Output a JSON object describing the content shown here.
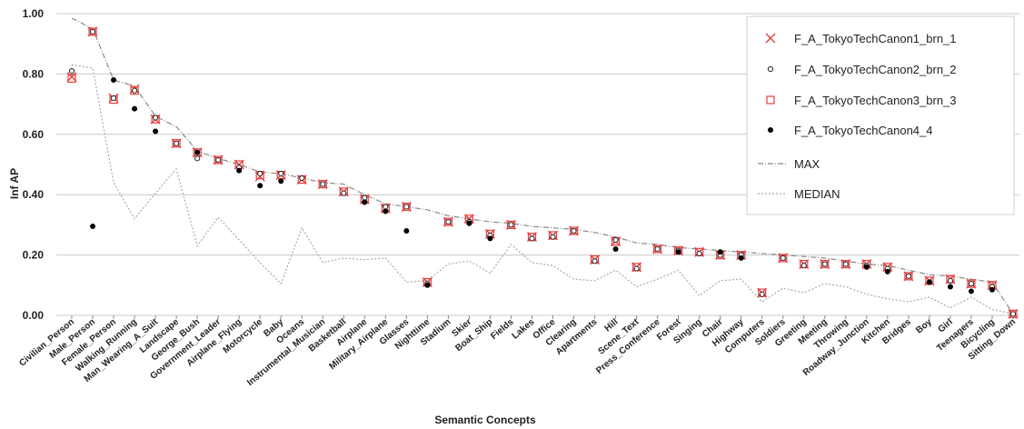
{
  "chart_data": {
    "type": "scatter",
    "xlabel": "Semantic Concepts",
    "ylabel": "Inf AP",
    "ylim": [
      0,
      1
    ],
    "yticks": [
      "0.00",
      "0.20",
      "0.40",
      "0.60",
      "0.80",
      "1.00"
    ],
    "grid": "horizontal",
    "legend_position": "top-right",
    "categories": [
      "Civilian_Person",
      "Male_Person",
      "Female_Person",
      "Walking_Running",
      "Man_Wearing_A_Suit",
      "Landscape",
      "George_Bush",
      "Government_Leader",
      "Airplane_Flying",
      "Motorcycle",
      "Baby",
      "Oceans",
      "Instrumental_Musician",
      "Basketball",
      "Airplane",
      "Military_Airplane",
      "Glasses",
      "Nighttime",
      "Stadium",
      "Skier",
      "Boat_Ship",
      "Fields",
      "Lakes",
      "Office",
      "Clearing",
      "Apartments",
      "Hill",
      "Scene_Text",
      "Press_Conference",
      "Forest",
      "Singing",
      "Chair",
      "Highway",
      "Computers",
      "Soldiers",
      "Greeting",
      "Meeting",
      "Throwing",
      "Roadway_Junction",
      "Kitchen",
      "Bridges",
      "Boy",
      "Girl",
      "Teenagers",
      "Bicycling",
      "Sitting_Down"
    ],
    "series": [
      {
        "name": "F_A_TokyoTechCanon1_brn_1",
        "marker": "x",
        "color": "#e84040",
        "values": [
          0.79,
          0.94,
          0.72,
          0.75,
          0.65,
          0.57,
          0.54,
          0.515,
          0.5,
          0.46,
          0.465,
          0.45,
          0.435,
          0.41,
          0.385,
          0.355,
          0.36,
          0.11,
          0.31,
          0.32,
          0.27,
          0.3,
          0.26,
          0.265,
          0.28,
          0.185,
          0.245,
          0.16,
          0.22,
          0.215,
          0.21,
          0.2,
          0.2,
          0.075,
          0.19,
          0.17,
          0.17,
          0.17,
          0.17,
          0.16,
          0.13,
          0.115,
          0.12,
          0.105,
          0.1,
          0.005
        ]
      },
      {
        "name": "F_A_TokyoTechCanon2_brn_2",
        "marker": "open-circle",
        "color": "#222222",
        "values": [
          0.81,
          0.94,
          0.72,
          0.745,
          0.655,
          0.57,
          0.52,
          0.515,
          0.49,
          0.47,
          0.47,
          0.455,
          0.435,
          0.405,
          0.39,
          0.36,
          0.36,
          0.105,
          0.31,
          0.31,
          0.265,
          0.3,
          0.255,
          0.26,
          0.28,
          0.18,
          0.25,
          0.155,
          0.22,
          0.215,
          0.205,
          0.2,
          0.2,
          0.07,
          0.19,
          0.165,
          0.17,
          0.17,
          0.165,
          0.155,
          0.13,
          0.11,
          0.115,
          0.105,
          0.095,
          0.005
        ]
      },
      {
        "name": "F_A_TokyoTechCanon3_brn_3",
        "marker": "open-square",
        "color": "#e84040",
        "values": [
          0.785,
          0.94,
          0.715,
          0.745,
          0.65,
          0.57,
          0.54,
          0.515,
          0.5,
          0.465,
          0.465,
          0.45,
          0.435,
          0.41,
          0.385,
          0.355,
          0.36,
          0.11,
          0.31,
          0.32,
          0.27,
          0.3,
          0.26,
          0.265,
          0.28,
          0.185,
          0.245,
          0.16,
          0.22,
          0.215,
          0.21,
          0.2,
          0.2,
          0.075,
          0.19,
          0.17,
          0.17,
          0.17,
          0.17,
          0.16,
          0.13,
          0.115,
          0.12,
          0.105,
          0.1,
          0.005
        ]
      },
      {
        "name": "F_A_TokyoTechCanon4_4",
        "marker": "filled-circle",
        "color": "#000000",
        "values": [
          null,
          0.295,
          0.78,
          0.685,
          0.61,
          null,
          0.54,
          null,
          0.48,
          0.43,
          0.445,
          null,
          null,
          null,
          0.375,
          0.345,
          0.28,
          0.1,
          null,
          0.305,
          0.255,
          null,
          null,
          null,
          null,
          null,
          0.22,
          null,
          null,
          0.21,
          null,
          0.21,
          0.19,
          null,
          null,
          null,
          null,
          null,
          0.16,
          0.145,
          null,
          0.11,
          0.095,
          0.08,
          0.085,
          null
        ]
      },
      {
        "name": "MAX",
        "marker": "dash-dot-line",
        "color": "#8a8a8a",
        "values": [
          0.985,
          0.95,
          0.78,
          0.76,
          0.66,
          0.625,
          0.545,
          0.52,
          0.5,
          0.475,
          0.47,
          0.455,
          0.44,
          0.435,
          0.4,
          0.37,
          0.36,
          0.35,
          0.33,
          0.32,
          0.31,
          0.305,
          0.295,
          0.29,
          0.285,
          0.275,
          0.26,
          0.24,
          0.235,
          0.225,
          0.22,
          0.215,
          0.21,
          0.205,
          0.2,
          0.195,
          0.19,
          0.18,
          0.17,
          0.165,
          0.15,
          0.135,
          0.13,
          0.12,
          0.11,
          0.005
        ]
      },
      {
        "name": "MEDIAN",
        "marker": "dotted-line",
        "color": "#aaaaaa",
        "values": [
          0.83,
          0.82,
          0.44,
          0.32,
          0.405,
          0.485,
          0.23,
          0.325,
          0.25,
          0.175,
          0.105,
          0.29,
          0.175,
          0.19,
          0.185,
          0.19,
          0.11,
          0.115,
          0.17,
          0.18,
          0.14,
          0.235,
          0.175,
          0.165,
          0.12,
          0.115,
          0.15,
          0.095,
          0.12,
          0.15,
          0.065,
          0.115,
          0.12,
          0.045,
          0.09,
          0.075,
          0.105,
          0.095,
          0.07,
          0.055,
          0.045,
          0.06,
          0.025,
          0.06,
          0.02,
          0.005
        ]
      }
    ]
  }
}
